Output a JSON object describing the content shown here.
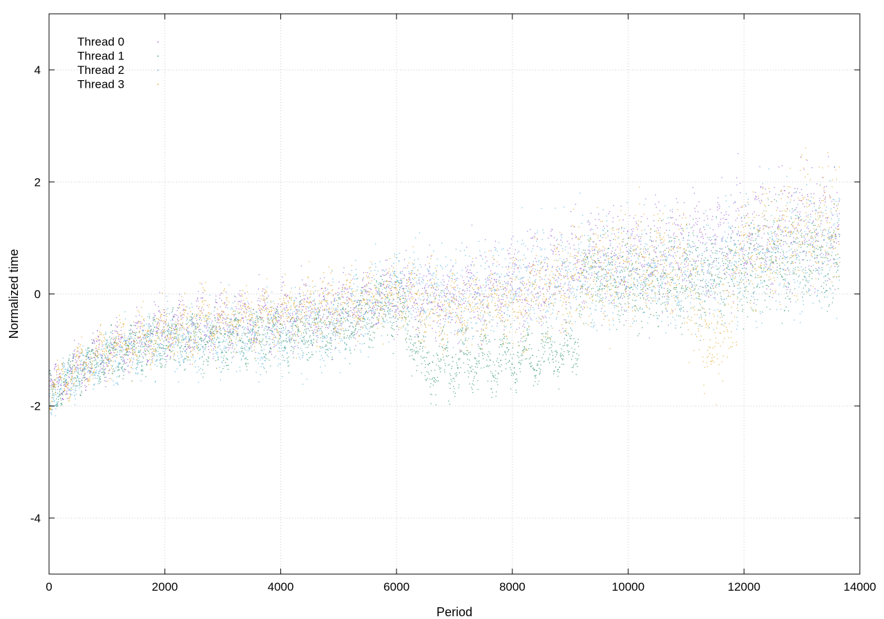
{
  "chart_data": {
    "type": "scatter",
    "xlabel": "Period",
    "ylabel": "Normalized time",
    "xlim": [
      0,
      14000
    ],
    "ylim": [
      -5,
      5
    ],
    "xticks": [
      0,
      2000,
      4000,
      6000,
      8000,
      10000,
      12000,
      14000
    ],
    "yticks": [
      -4,
      -2,
      0,
      2,
      4
    ],
    "xtick_labels": [
      "0",
      "2000",
      "4000",
      "6000",
      "8000",
      "10000",
      "12000",
      "14000"
    ],
    "ytick_labels": [
      "-4",
      "-2",
      "0",
      "2",
      "4"
    ],
    "grid": true,
    "legend_position": "top-left",
    "n_periods": 13650,
    "series": [
      {
        "name": "Thread 0",
        "color": "#9b5fd6",
        "trend": [
          [
            0,
            -1.75
          ],
          [
            500,
            -1.3
          ],
          [
            1000,
            -1.05
          ],
          [
            2000,
            -0.6
          ],
          [
            3000,
            -0.55
          ],
          [
            4000,
            -0.4
          ],
          [
            5000,
            -0.25
          ],
          [
            6000,
            0.0
          ],
          [
            7000,
            -0.1
          ],
          [
            8000,
            0.2
          ],
          [
            9000,
            0.45
          ],
          [
            10000,
            0.6
          ],
          [
            11000,
            0.8
          ],
          [
            12000,
            1.0
          ],
          [
            13000,
            1.2
          ],
          [
            13650,
            1.25
          ]
        ],
        "spread": [
          [
            0,
            0.1
          ],
          [
            2000,
            0.35
          ],
          [
            6000,
            0.5
          ],
          [
            9000,
            0.8
          ],
          [
            12000,
            1.0
          ],
          [
            13650,
            1.1
          ]
        ]
      },
      {
        "name": "Thread 1",
        "color": "#3a9a73",
        "trend": [
          [
            0,
            -1.8
          ],
          [
            500,
            -1.35
          ],
          [
            1000,
            -1.1
          ],
          [
            2000,
            -0.8
          ],
          [
            3000,
            -0.8
          ],
          [
            4000,
            -0.7
          ],
          [
            5000,
            -0.6
          ],
          [
            6000,
            -0.1
          ],
          [
            6500,
            -1.3
          ],
          [
            7500,
            -1.15
          ],
          [
            9100,
            -1.05
          ],
          [
            9200,
            0.5
          ],
          [
            10000,
            0.2
          ],
          [
            11000,
            0.3
          ],
          [
            12000,
            0.5
          ],
          [
            13000,
            0.7
          ],
          [
            13650,
            0.6
          ]
        ],
        "spread": [
          [
            0,
            0.1
          ],
          [
            2000,
            0.3
          ],
          [
            6000,
            0.45
          ],
          [
            9000,
            0.3
          ],
          [
            10000,
            0.7
          ],
          [
            13650,
            0.8
          ]
        ]
      },
      {
        "name": "Thread 2",
        "color": "#5bb5e0",
        "trend": [
          [
            0,
            -1.8
          ],
          [
            500,
            -1.4
          ],
          [
            1000,
            -1.15
          ],
          [
            2000,
            -0.85
          ],
          [
            3000,
            -0.8
          ],
          [
            4000,
            -0.7
          ],
          [
            5000,
            -0.5
          ],
          [
            6000,
            0.15
          ],
          [
            7000,
            0.0
          ],
          [
            8000,
            0.1
          ],
          [
            9000,
            0.3
          ],
          [
            10000,
            0.4
          ],
          [
            11000,
            0.3
          ],
          [
            12000,
            0.6
          ],
          [
            13000,
            0.8
          ],
          [
            13650,
            0.9
          ]
        ],
        "spread": [
          [
            0,
            0.1
          ],
          [
            2000,
            0.4
          ],
          [
            6000,
            0.7
          ],
          [
            9000,
            0.9
          ],
          [
            12000,
            1.0
          ],
          [
            13650,
            1.1
          ]
        ]
      },
      {
        "name": "Thread 3",
        "color": "#e1a92a",
        "trend": [
          [
            0,
            -1.75
          ],
          [
            500,
            -1.3
          ],
          [
            1000,
            -1.0
          ],
          [
            2000,
            -0.7
          ],
          [
            3000,
            -0.45
          ],
          [
            4000,
            -0.35
          ],
          [
            5000,
            -0.2
          ],
          [
            6000,
            0.0
          ],
          [
            7000,
            -0.25
          ],
          [
            8000,
            -0.2
          ],
          [
            9000,
            0.3
          ],
          [
            10000,
            0.5
          ],
          [
            11000,
            0.6
          ],
          [
            11300,
            -0.8
          ],
          [
            11600,
            -0.6
          ],
          [
            12000,
            0.8
          ],
          [
            13000,
            1.2
          ],
          [
            13650,
            1.3
          ]
        ],
        "spread": [
          [
            0,
            0.1
          ],
          [
            2000,
            0.35
          ],
          [
            6000,
            0.5
          ],
          [
            9000,
            0.8
          ],
          [
            12000,
            1.0
          ],
          [
            13650,
            1.1
          ]
        ]
      }
    ]
  }
}
